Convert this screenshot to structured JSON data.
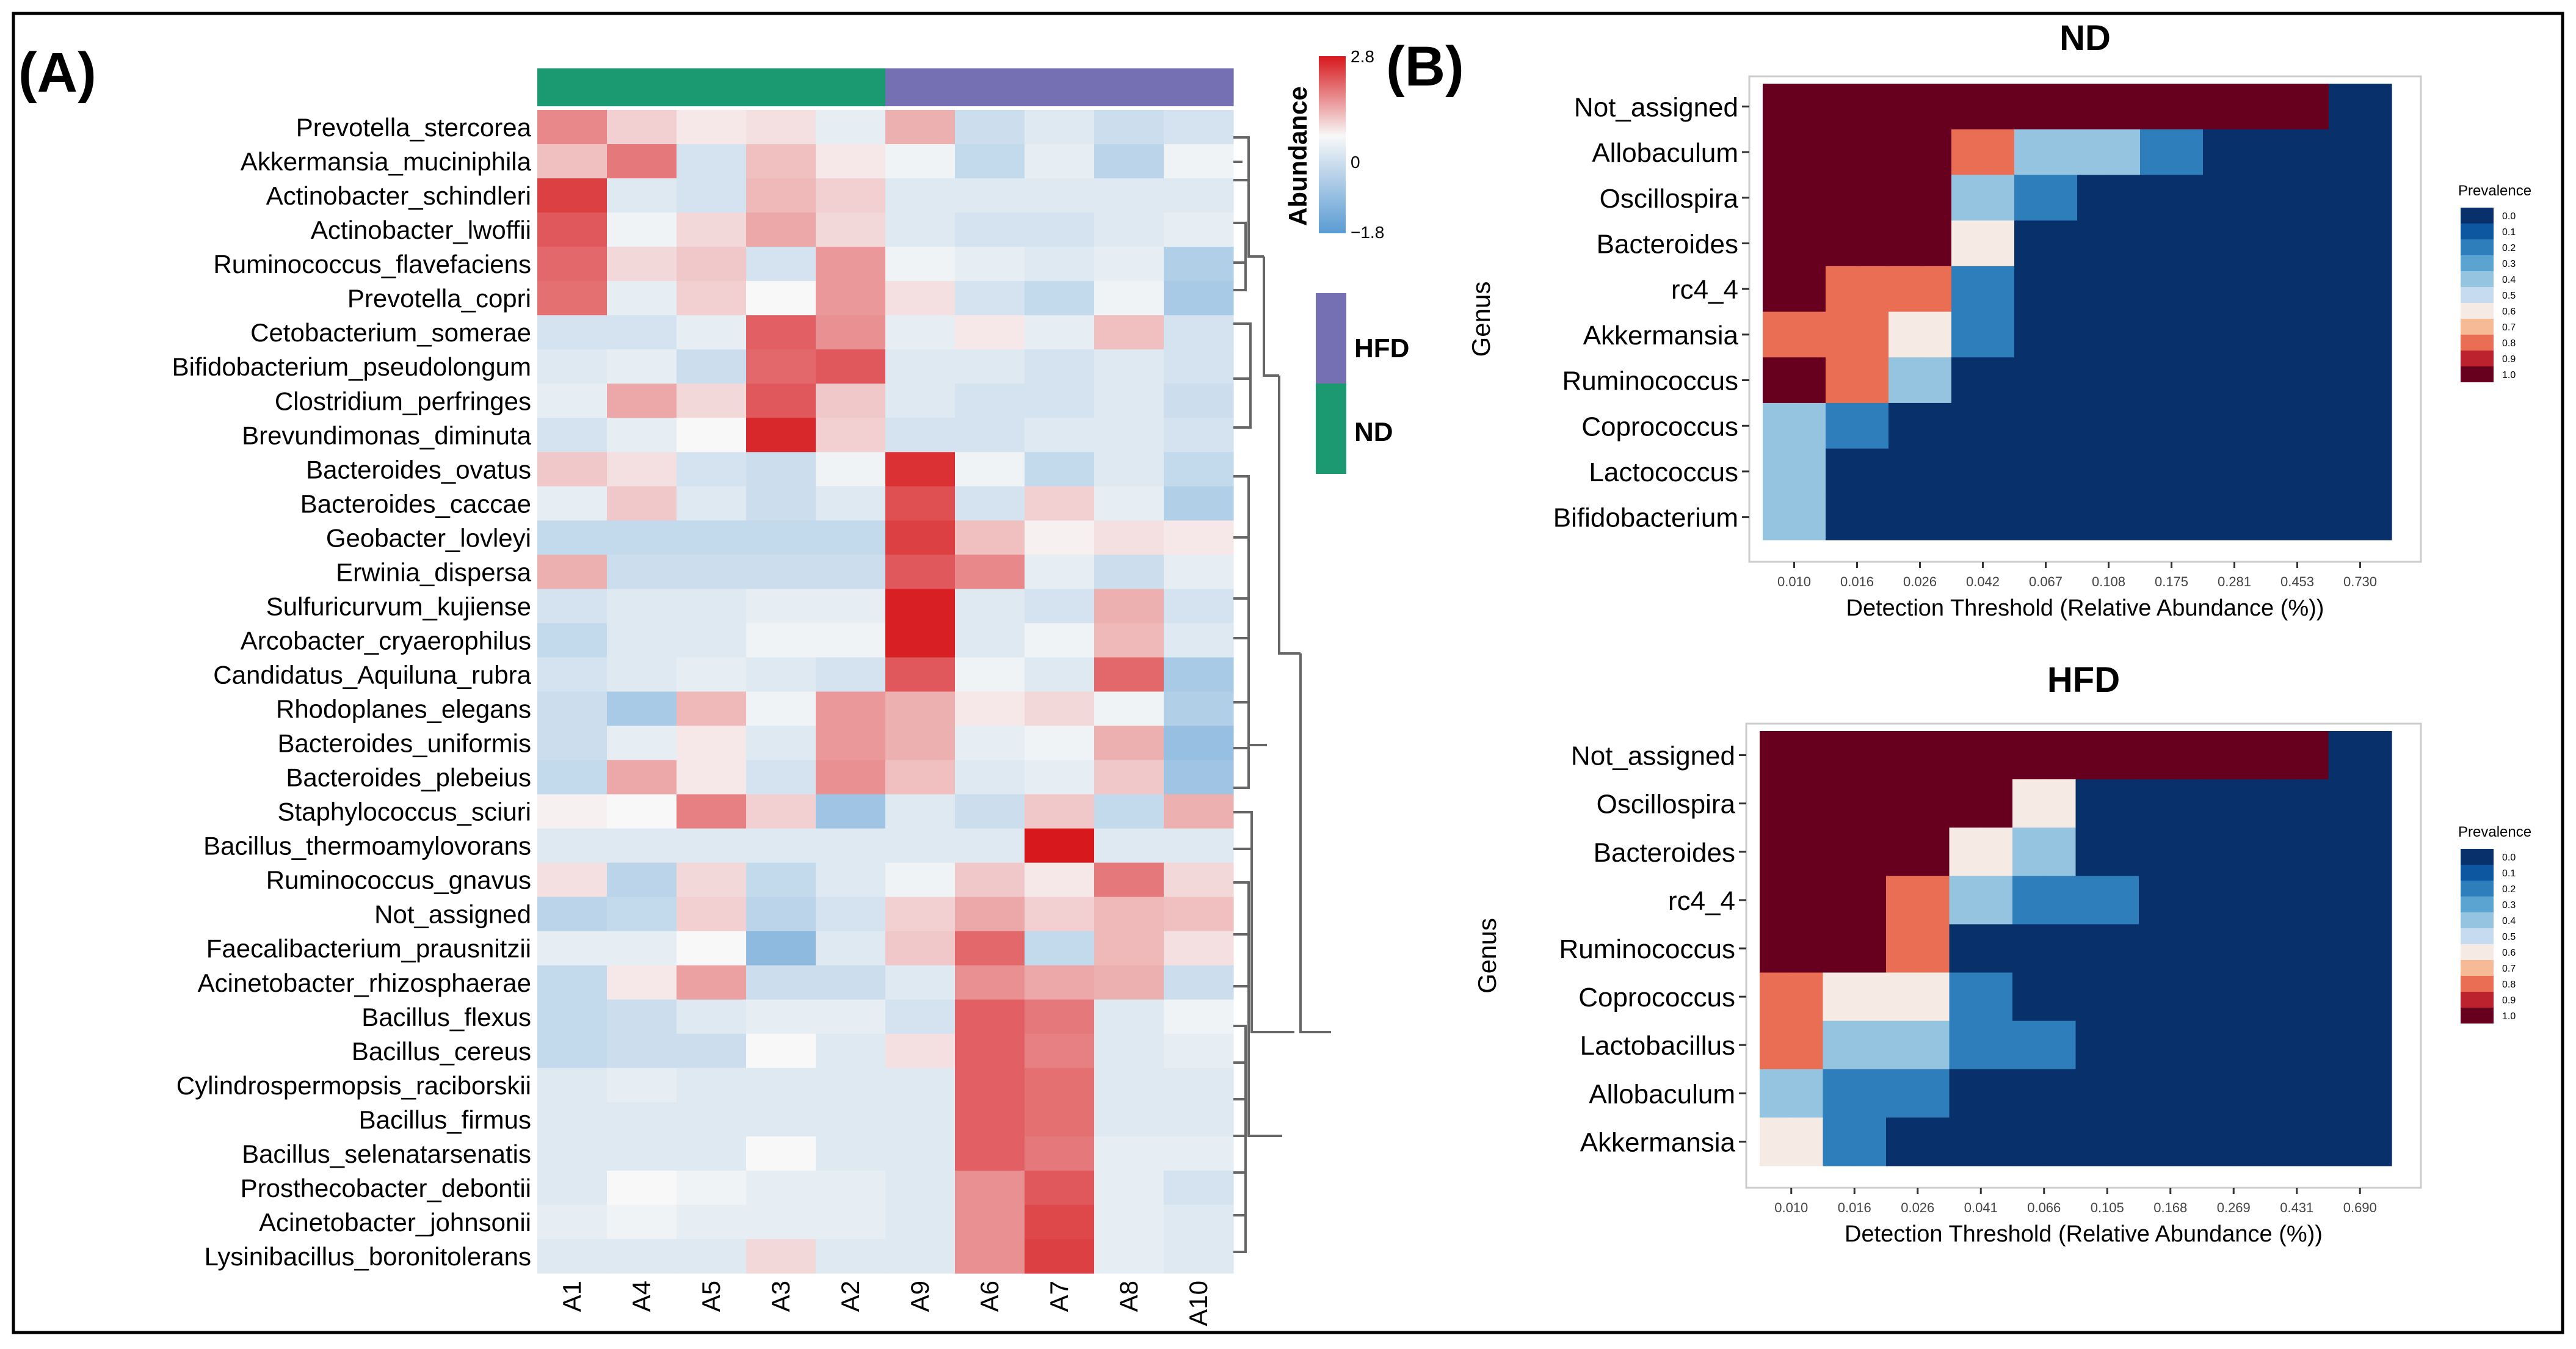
{
  "panels": {
    "a_label": "(A)",
    "b_label": "(B)"
  },
  "colors": {
    "heat_low": "#5a9bd3",
    "heat_mid": "#f8f8f8",
    "heat_high": "#d7181c",
    "group_nd": "#1b9a72",
    "group_hfd": "#7570b3",
    "prev_stops": [
      "#08306b",
      "#08519c",
      "#2171b5",
      "#4292c6",
      "#6baed6",
      "#9ecae1",
      "#c6dbef",
      "#f4f4f4",
      "#f7c8a5",
      "#f4a582",
      "#e34a33",
      "#b2182b",
      "#67001f"
    ]
  },
  "chart_data": [
    {
      "type": "heatmap",
      "id": "abundance_heatmap",
      "columns": [
        "A1",
        "A4",
        "A5",
        "A3",
        "A2",
        "A9",
        "A6",
        "A7",
        "A8",
        "A10"
      ],
      "column_groups": [
        "ND",
        "ND",
        "ND",
        "ND",
        "ND",
        "HFD",
        "HFD",
        "HFD",
        "HFD",
        "HFD"
      ],
      "rows": [
        "Prevotella_stercorea",
        "Akkermansia_muciniphila",
        "Actinobacter_schindleri",
        "Actinobacter_lwoffii",
        "Ruminococcus_flavefaciens",
        "Prevotella_copri",
        "Cetobacterium_somerae",
        "Bifidobacterium_pseudolongum",
        "Clostridium_perfringes",
        "Brevundimonas_diminuta",
        "Bacteroides_ovatus",
        "Bacteroides_caccae",
        "Geobacter_lovleyi",
        "Erwinia_dispersa",
        "Sulfuricurvum_kujiense",
        "Arcobacter_cryaerophilus",
        "Candidatus_Aquiluna_rubra",
        "Rhodoplanes_elegans",
        "Bacteroides_uniformis",
        "Bacteroides_plebeius",
        "Staphylococcus_sciuri",
        "Bacillus_thermoamylovorans",
        "Ruminococcus_gnavus",
        "Not_assigned",
        "Faecalibacterium_prausnitzii",
        "Acinetobacter_rhizosphaerae",
        "Bacillus_flexus",
        "Bacillus_cereus",
        "Cylindrospermopsis_raciborskii",
        "Bacillus_firmus",
        "Bacillus_selenatarsenatis",
        "Prosthecobacter_debontii",
        "Acinetobacter_johnsonii",
        "Lysinibacillus_boronitolerans"
      ],
      "values": [
        [
          1.4,
          0.5,
          0.2,
          0.3,
          -0.2,
          0.9,
          -0.5,
          -0.3,
          -0.5,
          -0.4
        ],
        [
          0.7,
          1.6,
          -0.4,
          0.7,
          0.2,
          -0.1,
          -0.6,
          -0.2,
          -0.7,
          -0.1
        ],
        [
          2.3,
          -0.3,
          -0.4,
          0.8,
          0.5,
          -0.3,
          -0.3,
          -0.3,
          -0.3,
          -0.3
        ],
        [
          2.0,
          -0.1,
          0.4,
          1.0,
          0.4,
          -0.3,
          -0.4,
          -0.4,
          -0.3,
          -0.2
        ],
        [
          1.8,
          0.4,
          0.6,
          -0.4,
          1.2,
          -0.1,
          -0.2,
          -0.3,
          -0.2,
          -0.8
        ],
        [
          1.7,
          -0.2,
          0.5,
          0.0,
          1.2,
          0.3,
          -0.4,
          -0.6,
          -0.1,
          -0.9
        ],
        [
          -0.4,
          -0.4,
          -0.2,
          1.9,
          1.3,
          -0.2,
          0.2,
          -0.2,
          0.7,
          -0.4
        ],
        [
          -0.3,
          -0.2,
          -0.5,
          1.8,
          2.0,
          -0.3,
          -0.3,
          -0.4,
          -0.3,
          -0.4
        ],
        [
          -0.2,
          1.0,
          0.4,
          2.0,
          0.6,
          -0.3,
          -0.4,
          -0.4,
          -0.3,
          -0.5
        ],
        [
          -0.4,
          -0.2,
          0.0,
          2.6,
          0.5,
          -0.4,
          -0.4,
          -0.3,
          -0.3,
          -0.4
        ],
        [
          0.6,
          0.3,
          -0.4,
          -0.5,
          -0.1,
          2.5,
          -0.1,
          -0.6,
          -0.3,
          -0.6
        ],
        [
          -0.2,
          0.6,
          -0.3,
          -0.5,
          -0.3,
          2.1,
          -0.4,
          0.5,
          -0.2,
          -0.8
        ],
        [
          -0.6,
          -0.6,
          -0.6,
          -0.6,
          -0.6,
          2.3,
          0.7,
          0.1,
          0.3,
          0.2
        ],
        [
          0.9,
          -0.5,
          -0.5,
          -0.5,
          -0.5,
          2.0,
          1.4,
          -0.2,
          -0.5,
          -0.2
        ],
        [
          -0.4,
          -0.3,
          -0.3,
          -0.2,
          -0.2,
          2.7,
          -0.3,
          -0.4,
          0.9,
          -0.4
        ],
        [
          -0.6,
          -0.3,
          -0.3,
          -0.1,
          -0.1,
          2.7,
          -0.3,
          -0.1,
          0.8,
          -0.3
        ],
        [
          -0.4,
          -0.3,
          -0.2,
          -0.3,
          -0.4,
          2.0,
          -0.1,
          -0.3,
          1.8,
          -0.9
        ],
        [
          -0.5,
          -0.9,
          0.8,
          -0.1,
          1.2,
          0.9,
          0.2,
          0.4,
          -0.1,
          -0.8
        ],
        [
          -0.5,
          -0.2,
          0.2,
          -0.3,
          1.2,
          0.9,
          -0.2,
          -0.1,
          0.9,
          -1.1
        ],
        [
          -0.6,
          1.0,
          0.2,
          -0.4,
          1.3,
          0.7,
          -0.3,
          -0.2,
          0.6,
          -1.0
        ],
        [
          0.1,
          0.0,
          1.5,
          0.5,
          -1.0,
          -0.3,
          -0.5,
          0.6,
          -0.6,
          0.9
        ],
        [
          -0.3,
          -0.3,
          -0.3,
          -0.3,
          -0.3,
          -0.3,
          -0.3,
          2.8,
          -0.3,
          -0.3
        ],
        [
          0.3,
          -0.7,
          0.4,
          -0.6,
          -0.3,
          -0.1,
          0.6,
          0.2,
          1.6,
          0.4
        ],
        [
          -0.7,
          -0.6,
          0.5,
          -0.7,
          -0.4,
          0.5,
          1.0,
          0.5,
          0.8,
          0.7
        ],
        [
          -0.2,
          -0.2,
          0.0,
          -1.2,
          -0.3,
          0.6,
          1.8,
          -0.6,
          0.8,
          0.3
        ],
        [
          -0.6,
          0.2,
          1.1,
          -0.5,
          -0.5,
          -0.3,
          1.3,
          1.0,
          0.9,
          -0.5
        ],
        [
          -0.6,
          -0.5,
          -0.3,
          -0.2,
          -0.2,
          -0.4,
          1.9,
          1.6,
          -0.3,
          -0.1
        ],
        [
          -0.6,
          -0.5,
          -0.5,
          0.0,
          -0.3,
          0.3,
          1.9,
          1.5,
          -0.3,
          -0.2
        ],
        [
          -0.3,
          -0.2,
          -0.3,
          -0.3,
          -0.3,
          -0.3,
          1.9,
          1.7,
          -0.3,
          -0.3
        ],
        [
          -0.3,
          -0.3,
          -0.3,
          -0.3,
          -0.3,
          -0.3,
          1.9,
          1.7,
          -0.3,
          -0.3
        ],
        [
          -0.3,
          -0.3,
          -0.3,
          0.0,
          -0.3,
          -0.3,
          1.9,
          1.6,
          -0.2,
          -0.2
        ],
        [
          -0.3,
          0.0,
          -0.1,
          -0.2,
          -0.2,
          -0.3,
          1.3,
          2.0,
          -0.2,
          -0.4
        ],
        [
          -0.2,
          -0.1,
          -0.2,
          -0.2,
          -0.2,
          -0.3,
          1.3,
          2.2,
          -0.2,
          -0.3
        ],
        [
          -0.3,
          -0.3,
          -0.3,
          0.4,
          -0.3,
          -0.3,
          1.3,
          2.3,
          -0.2,
          -0.3
        ]
      ],
      "legend": {
        "title": "Abundance",
        "max_label": "2.8",
        "mid_label": "0",
        "min_label": "−1.8",
        "vmin": -1.8,
        "vmax": 2.8
      },
      "groups_legend": [
        "HFD",
        "ND"
      ]
    },
    {
      "type": "heatmap",
      "id": "nd_core",
      "title": "ND",
      "xlabel": "Detection Threshold (Relative Abundance (%))",
      "ylabel": "Genus",
      "x_ticks": [
        "0.010",
        "0.016",
        "0.026",
        "0.042",
        "0.067",
        "0.108",
        "0.175",
        "0.281",
        "0.453",
        "0.730"
      ],
      "rows": [
        "Not_assigned",
        "Allobaculum",
        "Oscillospira",
        "Bacteroides",
        "rc4_4",
        "Akkermansia",
        "Ruminococcus",
        "Coprococcus",
        "Lactococcus",
        "Bifidobacterium"
      ],
      "values": [
        [
          1.0,
          1.0,
          1.0,
          1.0,
          1.0,
          1.0,
          1.0,
          1.0,
          1.0,
          1.0,
          1.0,
          1.0,
          1.0,
          1.0,
          1.0,
          1.0,
          1.0,
          1.0,
          0.0,
          0.0
        ],
        [
          1.0,
          1.0,
          1.0,
          1.0,
          1.0,
          1.0,
          0.8,
          0.8,
          0.4,
          0.4,
          0.4,
          0.4,
          0.2,
          0.2,
          0.0,
          0.0,
          0.0,
          0.0,
          0.0,
          0.0
        ],
        [
          1.0,
          1.0,
          1.0,
          1.0,
          1.0,
          1.0,
          0.4,
          0.4,
          0.2,
          0.2,
          0.0,
          0.0,
          0.0,
          0.0,
          0.0,
          0.0,
          0.0,
          0.0,
          0.0,
          0.0
        ],
        [
          1.0,
          1.0,
          1.0,
          1.0,
          1.0,
          1.0,
          0.6,
          0.6,
          0.0,
          0.0,
          0.0,
          0.0,
          0.0,
          0.0,
          0.0,
          0.0,
          0.0,
          0.0,
          0.0,
          0.0
        ],
        [
          1.0,
          1.0,
          0.8,
          0.8,
          0.8,
          0.8,
          0.2,
          0.2,
          0.0,
          0.0,
          0.0,
          0.0,
          0.0,
          0.0,
          0.0,
          0.0,
          0.0,
          0.0,
          0.0,
          0.0
        ],
        [
          0.8,
          0.8,
          0.8,
          0.8,
          0.6,
          0.6,
          0.2,
          0.2,
          0.0,
          0.0,
          0.0,
          0.0,
          0.0,
          0.0,
          0.0,
          0.0,
          0.0,
          0.0,
          0.0,
          0.0
        ],
        [
          1.0,
          1.0,
          0.8,
          0.8,
          0.4,
          0.4,
          0.0,
          0.0,
          0.0,
          0.0,
          0.0,
          0.0,
          0.0,
          0.0,
          0.0,
          0.0,
          0.0,
          0.0,
          0.0,
          0.0
        ],
        [
          0.4,
          0.4,
          0.2,
          0.2,
          0.0,
          0.0,
          0.0,
          0.0,
          0.0,
          0.0,
          0.0,
          0.0,
          0.0,
          0.0,
          0.0,
          0.0,
          0.0,
          0.0,
          0.0,
          0.0
        ],
        [
          0.4,
          0.4,
          0.0,
          0.0,
          0.0,
          0.0,
          0.0,
          0.0,
          0.0,
          0.0,
          0.0,
          0.0,
          0.0,
          0.0,
          0.0,
          0.0,
          0.0,
          0.0,
          0.0,
          0.0
        ],
        [
          0.4,
          0.4,
          0.0,
          0.0,
          0.0,
          0.0,
          0.0,
          0.0,
          0.0,
          0.0,
          0.0,
          0.0,
          0.0,
          0.0,
          0.0,
          0.0,
          0.0,
          0.0,
          0.0,
          0.0
        ]
      ],
      "legend": {
        "title": "Prevalence",
        "levels": [
          "0.0",
          "0.1",
          "0.2",
          "0.3",
          "0.4",
          "0.5",
          "0.6",
          "0.7",
          "0.8",
          "0.9",
          "1.0"
        ]
      }
    },
    {
      "type": "heatmap",
      "id": "hfd_core",
      "title": "HFD",
      "xlabel": "Detection Threshold (Relative Abundance (%))",
      "ylabel": "Genus",
      "x_ticks": [
        "0.010",
        "0.016",
        "0.026",
        "0.041",
        "0.066",
        "0.105",
        "0.168",
        "0.269",
        "0.431",
        "0.690"
      ],
      "rows": [
        "Not_assigned",
        "Oscillospira",
        "Bacteroides",
        "rc4_4",
        "Ruminococcus",
        "Coprococcus",
        "Lactobacillus",
        "Allobaculum",
        "Akkermansia"
      ],
      "values": [
        [
          1.0,
          1.0,
          1.0,
          1.0,
          1.0,
          1.0,
          1.0,
          1.0,
          1.0,
          1.0,
          1.0,
          1.0,
          1.0,
          1.0,
          1.0,
          1.0,
          1.0,
          1.0,
          0.0,
          0.0
        ],
        [
          1.0,
          1.0,
          1.0,
          1.0,
          1.0,
          1.0,
          1.0,
          1.0,
          0.6,
          0.6,
          0.0,
          0.0,
          0.0,
          0.0,
          0.0,
          0.0,
          0.0,
          0.0,
          0.0,
          0.0
        ],
        [
          1.0,
          1.0,
          1.0,
          1.0,
          1.0,
          1.0,
          0.6,
          0.6,
          0.4,
          0.4,
          0.0,
          0.0,
          0.0,
          0.0,
          0.0,
          0.0,
          0.0,
          0.0,
          0.0,
          0.0
        ],
        [
          1.0,
          1.0,
          1.0,
          1.0,
          0.8,
          0.8,
          0.4,
          0.4,
          0.2,
          0.2,
          0.2,
          0.2,
          0.0,
          0.0,
          0.0,
          0.0,
          0.0,
          0.0,
          0.0,
          0.0
        ],
        [
          1.0,
          1.0,
          1.0,
          1.0,
          0.8,
          0.8,
          0.0,
          0.0,
          0.0,
          0.0,
          0.0,
          0.0,
          0.0,
          0.0,
          0.0,
          0.0,
          0.0,
          0.0,
          0.0,
          0.0
        ],
        [
          0.8,
          0.8,
          0.6,
          0.6,
          0.6,
          0.6,
          0.2,
          0.2,
          0.0,
          0.0,
          0.0,
          0.0,
          0.0,
          0.0,
          0.0,
          0.0,
          0.0,
          0.0,
          0.0,
          0.0
        ],
        [
          0.8,
          0.8,
          0.4,
          0.4,
          0.4,
          0.4,
          0.2,
          0.2,
          0.2,
          0.2,
          0.0,
          0.0,
          0.0,
          0.0,
          0.0,
          0.0,
          0.0,
          0.0,
          0.0,
          0.0
        ],
        [
          0.4,
          0.4,
          0.2,
          0.2,
          0.2,
          0.2,
          0.0,
          0.0,
          0.0,
          0.0,
          0.0,
          0.0,
          0.0,
          0.0,
          0.0,
          0.0,
          0.0,
          0.0,
          0.0,
          0.0
        ],
        [
          0.6,
          0.6,
          0.2,
          0.2,
          0.0,
          0.0,
          0.0,
          0.0,
          0.0,
          0.0,
          0.0,
          0.0,
          0.0,
          0.0,
          0.0,
          0.0,
          0.0,
          0.0,
          0.0,
          0.0
        ]
      ],
      "legend": {
        "title": "Prevalence",
        "levels": [
          "0.0",
          "0.1",
          "0.2",
          "0.3",
          "0.4",
          "0.5",
          "0.6",
          "0.7",
          "0.8",
          "0.9",
          "1.0"
        ]
      }
    }
  ]
}
